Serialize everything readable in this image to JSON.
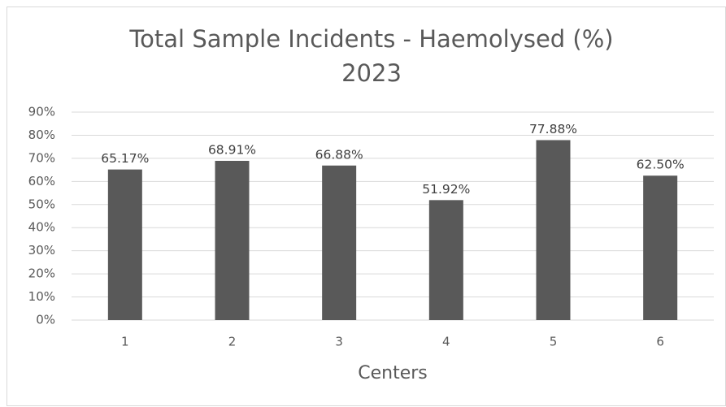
{
  "chart_data": {
    "type": "bar",
    "title": [
      "Total Sample Incidents - Haemolysed  (%)",
      "2023"
    ],
    "x_label": "Centers",
    "categories": [
      "1",
      "2",
      "3",
      "4",
      "5",
      "6"
    ],
    "values": [
      65.17,
      68.91,
      66.88,
      51.92,
      77.88,
      62.5
    ],
    "value_labels": [
      "65.17%",
      "68.91%",
      "66.88%",
      "51.92%",
      "77.88%",
      "62.50%"
    ],
    "color": "#595959",
    "ylim": [
      0,
      90
    ],
    "yticks": [
      {
        "value": 0,
        "label": "0%"
      },
      {
        "value": 10,
        "label": "10%"
      },
      {
        "value": 20,
        "label": "20%"
      },
      {
        "value": 30,
        "label": "30%"
      },
      {
        "value": 40,
        "label": "40%"
      },
      {
        "value": 50,
        "label": "50%"
      },
      {
        "value": 60,
        "label": "60%"
      },
      {
        "value": 70,
        "label": "70%"
      },
      {
        "value": 80,
        "label": "80%"
      },
      {
        "value": 90,
        "label": "90%"
      }
    ],
    "grid": true
  }
}
